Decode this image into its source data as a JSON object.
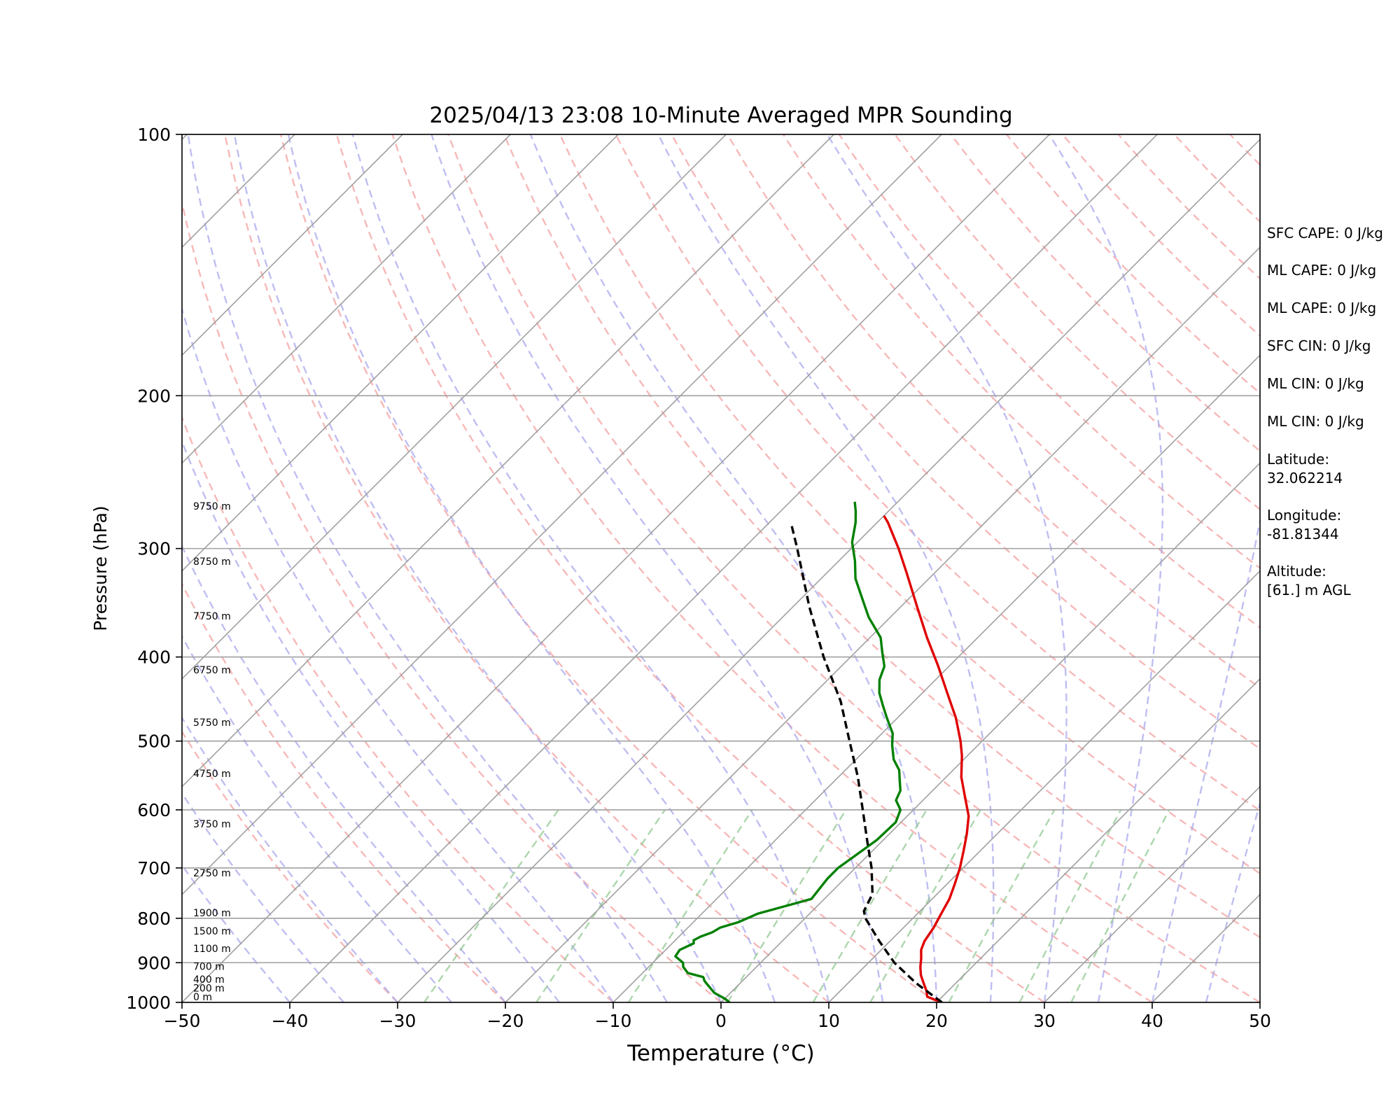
{
  "chart_data": {
    "type": "line",
    "title": "2025/04/13 23:08 10-Minute Averaged MPR Sounding",
    "xlabel": "Temperature (°C)",
    "ylabel": "Pressure (hPa)",
    "xlim": [
      -50,
      50
    ],
    "ylim": [
      1000,
      100
    ],
    "y_scale": "log",
    "x_ticks": [
      "−50",
      "−40",
      "−30",
      "−20",
      "−10",
      "0",
      "10",
      "20",
      "30",
      "40",
      "50"
    ],
    "y_ticks": [
      "100",
      "200",
      "300",
      "400",
      "500",
      "600",
      "700",
      "800",
      "900",
      "1000"
    ],
    "grid": true,
    "skew": true,
    "height_labels": [
      {
        "label": "0 m",
        "p": 1000
      },
      {
        "label": "200 m",
        "p": 977
      },
      {
        "label": "400 m",
        "p": 955
      },
      {
        "label": "700 m",
        "p": 922
      },
      {
        "label": "1100 m",
        "p": 880
      },
      {
        "label": "1500 m",
        "p": 840
      },
      {
        "label": "1900 m",
        "p": 800
      },
      {
        "label": "2750 m",
        "p": 720
      },
      {
        "label": "3750 m",
        "p": 632
      },
      {
        "label": "4750 m",
        "p": 553
      },
      {
        "label": "5750 m",
        "p": 483
      },
      {
        "label": "6750 m",
        "p": 420
      },
      {
        "label": "7750 m",
        "p": 364
      },
      {
        "label": "8750 m",
        "p": 315
      },
      {
        "label": "9750 m",
        "p": 272
      }
    ],
    "series": [
      {
        "color": "#e00000",
        "style": "solid",
        "points": [
          [
            1000,
            20.5
          ],
          [
            985,
            18.6
          ],
          [
            970,
            18.0
          ],
          [
            950,
            17.0
          ],
          [
            930,
            16.0
          ],
          [
            910,
            15.2
          ],
          [
            890,
            14.5
          ],
          [
            870,
            13.7
          ],
          [
            850,
            13.2
          ],
          [
            820,
            12.8
          ],
          [
            790,
            12.2
          ],
          [
            760,
            11.6
          ],
          [
            730,
            10.7
          ],
          [
            700,
            9.7
          ],
          [
            670,
            8.5
          ],
          [
            640,
            7.2
          ],
          [
            610,
            5.7
          ],
          [
            580,
            3.6
          ],
          [
            550,
            1.4
          ],
          [
            520,
            -0.5
          ],
          [
            500,
            -2.0
          ],
          [
            470,
            -4.6
          ],
          [
            440,
            -7.7
          ],
          [
            410,
            -11.0
          ],
          [
            380,
            -14.7
          ],
          [
            350,
            -18.5
          ],
          [
            320,
            -22.6
          ],
          [
            300,
            -25.6
          ],
          [
            280,
            -29.0
          ],
          [
            275,
            -30.0
          ]
        ]
      },
      {
        "color": "#008000",
        "style": "solid",
        "points": [
          [
            1000,
            0.8
          ],
          [
            990,
            0.0
          ],
          [
            975,
            -1.5
          ],
          [
            960,
            -2.5
          ],
          [
            945,
            -3.5
          ],
          [
            935,
            -4.0
          ],
          [
            925,
            -5.8
          ],
          [
            910,
            -6.8
          ],
          [
            900,
            -7.2
          ],
          [
            885,
            -8.5
          ],
          [
            870,
            -8.7
          ],
          [
            855,
            -8.0
          ],
          [
            848,
            -8.3
          ],
          [
            840,
            -8.0
          ],
          [
            830,
            -7.3
          ],
          [
            820,
            -7.0
          ],
          [
            808,
            -5.8
          ],
          [
            790,
            -4.8
          ],
          [
            760,
            -1.2
          ],
          [
            740,
            -1.4
          ],
          [
            720,
            -1.6
          ],
          [
            700,
            -1.6
          ],
          [
            680,
            -1.2
          ],
          [
            650,
            -0.6
          ],
          [
            620,
            -0.5
          ],
          [
            600,
            -1.2
          ],
          [
            585,
            -2.5
          ],
          [
            570,
            -3.0
          ],
          [
            555,
            -4.0
          ],
          [
            540,
            -5.0
          ],
          [
            525,
            -6.5
          ],
          [
            505,
            -8.0
          ],
          [
            490,
            -9.0
          ],
          [
            470,
            -11.0
          ],
          [
            455,
            -12.5
          ],
          [
            440,
            -14.0
          ],
          [
            425,
            -15.2
          ],
          [
            410,
            -16.0
          ],
          [
            395,
            -17.5
          ],
          [
            380,
            -19.0
          ],
          [
            360,
            -22.0
          ],
          [
            345,
            -24.0
          ],
          [
            325,
            -26.8
          ],
          [
            310,
            -28.5
          ],
          [
            295,
            -30.5
          ],
          [
            280,
            -32.0
          ],
          [
            272,
            -33.0
          ],
          [
            265,
            -34.0
          ]
        ]
      },
      {
        "color": "#000000",
        "style": "dashed",
        "points": [
          [
            1000,
            20.5
          ],
          [
            950,
            16.3
          ],
          [
            900,
            12.4
          ],
          [
            850,
            9.0
          ],
          [
            800,
            5.6
          ],
          [
            785,
            4.8
          ],
          [
            750,
            4.0
          ],
          [
            700,
            1.5
          ],
          [
            650,
            -1.5
          ],
          [
            600,
            -4.7
          ],
          [
            550,
            -8.2
          ],
          [
            500,
            -12.3
          ],
          [
            450,
            -16.8
          ],
          [
            400,
            -22.5
          ],
          [
            350,
            -28.5
          ],
          [
            300,
            -35.0
          ],
          [
            280,
            -38.0
          ]
        ]
      }
    ]
  },
  "stats": {
    "sfc_cape": "SFC CAPE: 0 J/kg",
    "ml_cape_1": "ML CAPE: 0 J/kg",
    "ml_cape_2": "ML CAPE: 0 J/kg",
    "sfc_cin": "SFC CIN: 0 J/kg",
    "ml_cin_1": "ML CIN: 0 J/kg",
    "ml_cin_2": "ML CIN: 0 J/kg",
    "latitude_label": "Latitude:",
    "latitude_value": "32.062214",
    "longitude_label": "Longitude:",
    "longitude_value": "-81.81344",
    "altitude_label": "Altitude:",
    "altitude_value": "[61.] m AGL"
  }
}
